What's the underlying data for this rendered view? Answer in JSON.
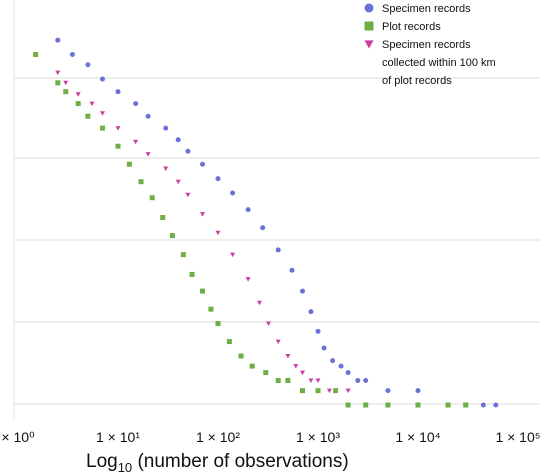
{
  "chart_data": {
    "type": "scatter",
    "title": "",
    "x_scale": "log10",
    "xlim": [
      1,
      100000
    ],
    "y_scale": "log10",
    "xlabel_prefix": "Log",
    "xlabel_sub": "10",
    "xlabel_suffix": " (number of observations)",
    "ylabel": "",
    "x_tick_labels": [
      "× 10⁰",
      "1 × 10¹",
      "1 × 10²",
      "1 × 10³",
      "1 × 10⁴",
      "1 × 10⁵"
    ],
    "y_tick_labels": [],
    "grid": "horizontal lines only",
    "legend_position": "top-right",
    "legend": [
      {
        "label_lines": [
          "Specimen records"
        ],
        "marker": "circle",
        "color": "#6a72d8"
      },
      {
        "label_lines": [
          "Plot records"
        ],
        "marker": "square",
        "color": "#6fae45"
      },
      {
        "label_lines": [
          "Specimen records",
          "collected within 100 km",
          "of plot records"
        ],
        "marker": "triangle-down",
        "color": "#cc3ea0"
      }
    ],
    "series": [
      {
        "marker": "circle",
        "color": "#6a72d8",
        "x": [
          2.5,
          3.5,
          5,
          7,
          10,
          15,
          20,
          30,
          40,
          50,
          70,
          100,
          140,
          200,
          280,
          400,
          550,
          700,
          850,
          1000,
          1150,
          1400,
          1700,
          2000,
          2500,
          3000,
          5000,
          10000,
          20000,
          30000,
          45000,
          60000
        ],
        "y": [
          30000,
          20000,
          15000,
          10000,
          7000,
          5000,
          3500,
          2500,
          1800,
          1300,
          900,
          600,
          400,
          250,
          150,
          80,
          45,
          25,
          14,
          8,
          5,
          3.5,
          3,
          2.5,
          2,
          2,
          1.5,
          1.5,
          1,
          1,
          1,
          1
        ]
      },
      {
        "marker": "triangle-down",
        "color": "#cc3ea0",
        "x": [
          2.5,
          3,
          4,
          5.5,
          7,
          10,
          15,
          20,
          30,
          40,
          50,
          70,
          100,
          140,
          200,
          260,
          320,
          400,
          500,
          600,
          700,
          850,
          1000,
          1300,
          2000,
          3000,
          5000,
          10000,
          20000,
          30000
        ],
        "y": [
          12000,
          9000,
          6500,
          5000,
          3800,
          2500,
          1700,
          1200,
          800,
          550,
          380,
          220,
          130,
          70,
          35,
          18,
          10,
          6,
          4,
          3,
          2.5,
          2,
          2,
          1.5,
          1.5,
          1,
          1,
          1,
          1,
          1
        ]
      },
      {
        "marker": "square",
        "color": "#6fae45",
        "x": [
          1.5,
          2.5,
          3,
          4,
          5,
          7,
          10,
          13,
          17,
          22,
          28,
          35,
          45,
          55,
          70,
          85,
          100,
          130,
          170,
          220,
          300,
          400,
          500,
          700,
          1000,
          1500,
          2000,
          3000,
          5000,
          10000,
          20000,
          30000
        ],
        "y": [
          20000,
          9000,
          7000,
          5000,
          3500,
          2500,
          1500,
          900,
          550,
          350,
          200,
          120,
          70,
          40,
          25,
          15,
          10,
          6,
          4,
          3,
          2.5,
          2,
          2,
          1.5,
          1.5,
          1.5,
          1,
          1,
          1,
          1,
          1,
          1
        ]
      }
    ]
  }
}
